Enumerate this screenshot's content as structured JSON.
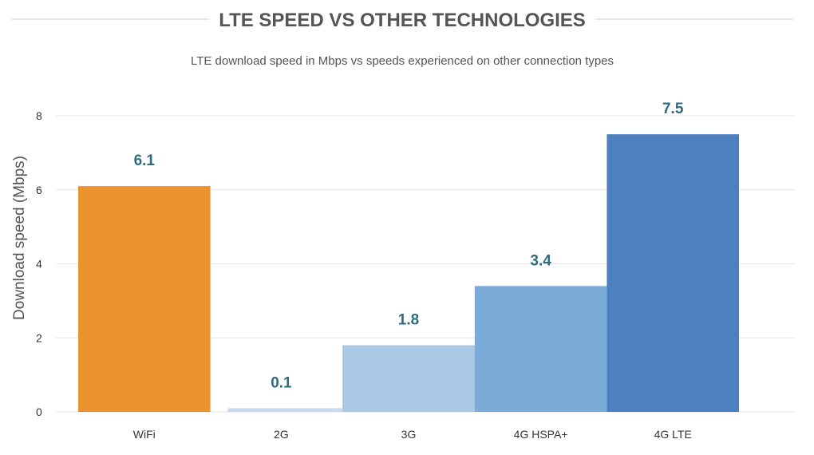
{
  "chart_data": {
    "type": "bar",
    "title": "LTE SPEED VS OTHER TECHNOLOGIES",
    "subtitle": "LTE download speed in Mbps vs speeds experienced on other connection types",
    "xlabel": "",
    "ylabel": "Download speed (Mbps)",
    "ylim": [
      0,
      8
    ],
    "yticks": [
      "0",
      "2",
      "4",
      "6",
      "8"
    ],
    "grid": true,
    "categories": [
      "WiFi",
      "2G",
      "3G",
      "4G HSPA+",
      "4G LTE"
    ],
    "values": [
      6.1,
      0.1,
      1.8,
      3.4,
      7.5
    ],
    "value_labels": [
      "6.1",
      "0.1",
      "1.8",
      "3.4",
      "7.5"
    ],
    "colors": [
      "#ec932f",
      "#c8daf0",
      "#a8c8e4",
      "#7aabd9",
      "#4d80c0"
    ],
    "title_rule_color": "#cccccc",
    "grid_color": "#e6e6e6",
    "value_label_color": "#2f6b7f"
  }
}
